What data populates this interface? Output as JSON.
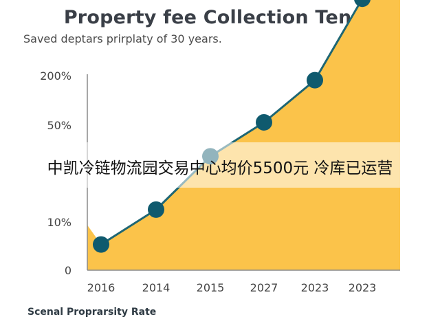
{
  "chart_data": {
    "type": "area",
    "title": "Property fee Collection Tends",
    "subtitle": "Saved deptars prirplaty of 30 years.",
    "xlabel": "Scenal Proprarsity Rate",
    "ylabel": "",
    "y_ticks": [
      "200%",
      "50%",
      "",
      "10%",
      "0"
    ],
    "x_ticks": [
      "2016",
      "2014",
      "2015",
      "2027",
      "2023",
      "2023"
    ],
    "points": [
      {
        "x": "2016",
        "y_level": 0.53
      },
      {
        "x": "2014",
        "y_level": 1.25
      },
      {
        "x": "2015",
        "y_level": 2.35
      },
      {
        "x": "2027",
        "y_level": 3.05
      },
      {
        "x": "2023",
        "y_level": 3.92
      },
      {
        "x": "2023",
        "y_level": 5.6
      }
    ],
    "area_start_level": 0.93,
    "area_end_level": 5.73,
    "grid": false,
    "legend": "none"
  },
  "colors": {
    "area": "#fbc34a",
    "line": "#1e6674",
    "marker": "#0f5a6e",
    "axis": "#8a8a8a"
  },
  "overlay": {
    "caption": "中凯冷链物流园交易中心均价5500元 冷库已运营"
  }
}
